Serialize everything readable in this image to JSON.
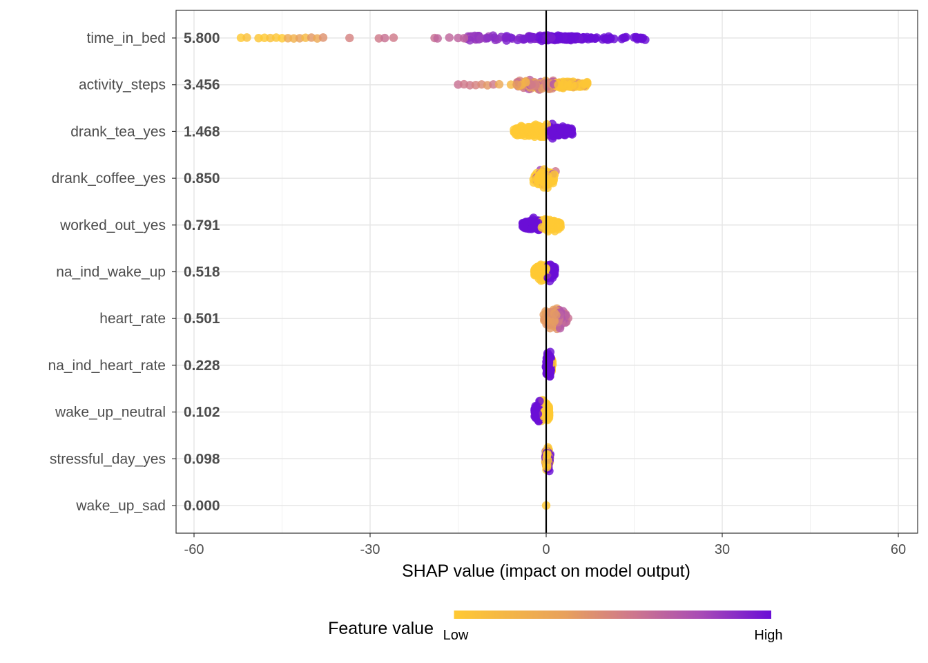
{
  "chart_data": {
    "type": "scatter",
    "subtype": "shap-beeswarm",
    "xlabel": "SHAP value (impact on model output)",
    "xlim": [
      -62,
      64
    ],
    "x_ticks": [
      -60,
      -30,
      0,
      30,
      60
    ],
    "x_tick_labels": [
      "-60",
      "-30",
      "0",
      "30",
      "60"
    ],
    "grid": true,
    "reference_line_x": 0,
    "legend": {
      "title": "Feature value",
      "low_label": "Low",
      "high_label": "High",
      "placement": "bottom",
      "colors": [
        "#FFC933",
        "#E8A15C",
        "#D07A8A",
        "#A84BB6",
        "#6A0FD6"
      ]
    },
    "features": [
      {
        "name": "time_in_bed",
        "mean_abs_shap": "5.800",
        "x_min": -52,
        "x_max": 17,
        "color_mode": "increasing",
        "spread": 0.07,
        "extra_points": [
          [
            -52,
            0.0
          ],
          [
            -51,
            0.05
          ],
          [
            -49,
            0.02
          ],
          [
            -48,
            0.0
          ],
          [
            -47,
            0.05
          ],
          [
            -46,
            0.02
          ],
          [
            -45,
            0.0
          ],
          [
            -44,
            0.2
          ],
          [
            -43,
            0.15
          ],
          [
            -42,
            0.25
          ],
          [
            -41,
            0.1
          ],
          [
            -40,
            0.3
          ],
          [
            -39,
            0.2
          ],
          [
            -38,
            0.35
          ],
          [
            -33.5,
            0.45
          ],
          [
            -28.5,
            0.5
          ],
          [
            -27.5,
            0.55
          ],
          [
            -26,
            0.5
          ],
          [
            -19,
            0.55
          ],
          [
            -18.5,
            0.6
          ],
          [
            -16.5,
            0.6
          ],
          [
            -15,
            0.62
          ],
          [
            -14,
            0.62
          ]
        ]
      },
      {
        "name": "activity_steps",
        "mean_abs_shap": "3.456",
        "x_min": -15,
        "x_max": 7,
        "color_mode": "decreasing_mixed",
        "spread": 0.1,
        "extra_points": [
          [
            -15,
            0.55
          ],
          [
            -14,
            0.5
          ],
          [
            -13,
            0.5
          ],
          [
            -12,
            0.45
          ],
          [
            -11,
            0.4
          ],
          [
            -10,
            0.3
          ],
          [
            -9,
            0.5
          ],
          [
            -8,
            0.2
          ],
          [
            -6,
            0.1
          ],
          [
            -5,
            0.3
          ]
        ]
      },
      {
        "name": "drank_tea_yes",
        "mean_abs_shap": "1.468",
        "x_min": -5.5,
        "x_max": 4.5,
        "color_mode": "binary_high_right",
        "spread": 0.16,
        "extra_points": []
      },
      {
        "name": "drank_coffee_yes",
        "mean_abs_shap": "0.850",
        "x_min": -3.5,
        "x_max": 3,
        "color_mode": "mostly_low",
        "spread": 0.17,
        "extra_points": []
      },
      {
        "name": "worked_out_yes",
        "mean_abs_shap": "0.791",
        "x_min": -4,
        "x_max": 2.5,
        "color_mode": "binary_high_left",
        "spread": 0.16,
        "extra_points": []
      },
      {
        "name": "na_ind_wake_up",
        "mean_abs_shap": "0.518",
        "x_min": -2,
        "x_max": 1.5,
        "color_mode": "binary_high_right",
        "spread": 0.22,
        "extra_points": []
      },
      {
        "name": "heart_rate",
        "mean_abs_shap": "0.501",
        "x_min": -2,
        "x_max": 5,
        "color_mode": "mid",
        "spread": 0.2,
        "extra_points": []
      },
      {
        "name": "na_ind_heart_rate",
        "mean_abs_shap": "0.228",
        "x_min": -0.5,
        "x_max": 1.5,
        "color_mode": "binary_high_mostly",
        "spread": 0.26,
        "extra_points": []
      },
      {
        "name": "wake_up_neutral",
        "mean_abs_shap": "0.102",
        "x_min": -2,
        "x_max": 0.5,
        "color_mode": "binary_high_left_small",
        "spread": 0.26,
        "extra_points": []
      },
      {
        "name": "stressful_day_yes",
        "mean_abs_shap": "0.098",
        "x_min": -0.5,
        "x_max": 1,
        "color_mode": "binary_high_right_small",
        "spread": 0.26,
        "extra_points": []
      },
      {
        "name": "wake_up_sad",
        "mean_abs_shap": "0.000",
        "x_min": 0,
        "x_max": 0,
        "color_mode": "single_low",
        "spread": 0.0,
        "extra_points": []
      }
    ]
  }
}
